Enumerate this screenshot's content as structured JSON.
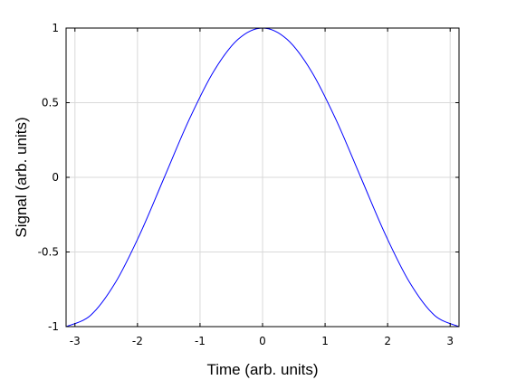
{
  "chart_data": {
    "type": "line",
    "title": "",
    "xlabel": "Time (arb. units)",
    "ylabel": "Signal (arb. units)",
    "xlim": [
      -3.14159,
      3.14159
    ],
    "ylim": [
      -1,
      1
    ],
    "grid": true,
    "legend": "none",
    "x_ticks": [
      -3,
      -2,
      -1,
      0,
      1,
      2,
      3
    ],
    "x_tick_labels": [
      "-3",
      "-2",
      "-1",
      "0",
      "1",
      "2",
      "3"
    ],
    "y_ticks": [
      -1,
      -0.5,
      0,
      0.5,
      1
    ],
    "y_tick_labels": [
      "-1",
      "-0.5",
      "0",
      "0.5",
      "1"
    ],
    "series": [
      {
        "color": "#0000ff",
        "x": [
          -3.1416,
          -2.7489,
          -2.3562,
          -1.9635,
          -1.5708,
          -1.1781,
          -0.7854,
          -0.3927,
          0,
          0.3927,
          0.7854,
          1.1781,
          1.5708,
          1.9635,
          2.3562,
          2.7489,
          3.1416
        ],
        "y": [
          -1,
          -0.9239,
          -0.7071,
          -0.3827,
          0,
          0.3827,
          0.7071,
          0.9239,
          1,
          0.9239,
          0.7071,
          0.3827,
          0,
          -0.3827,
          -0.7071,
          -0.9239,
          -1
        ]
      }
    ]
  }
}
